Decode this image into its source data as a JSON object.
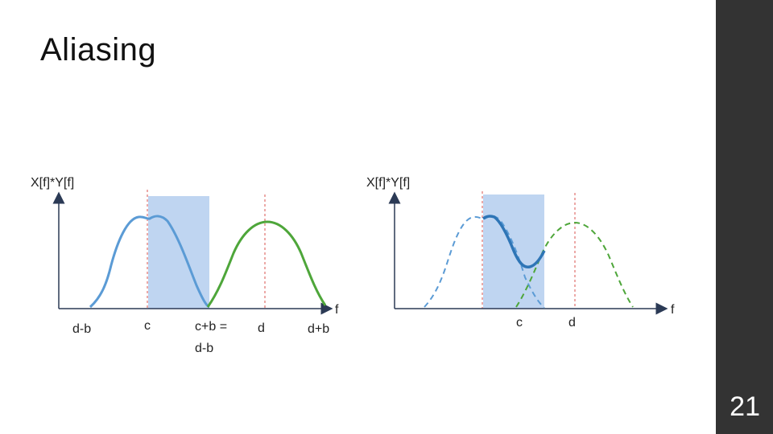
{
  "title": "Aliasing",
  "page_number": "21",
  "colors": {
    "blue": "#5b9bd5",
    "blue_dark": "#2e75b6",
    "green": "#4ea63a",
    "shade": "#a9c7ec",
    "red_dashed": "#d9534f",
    "sidebar": "#333333"
  },
  "left_plot": {
    "y_label": "X[f]*Y[f]",
    "x_label": "f",
    "ticks": {
      "d_minus_b": "d-b",
      "c": "c",
      "c_plus_b_line1": "c+b =",
      "c_plus_b_line2": "d-b",
      "d": "d",
      "d_plus_b": "d+b"
    }
  },
  "right_plot": {
    "y_label": "X[f]*Y[f]",
    "x_label": "f",
    "ticks": {
      "c": "c",
      "d": "d"
    }
  }
}
